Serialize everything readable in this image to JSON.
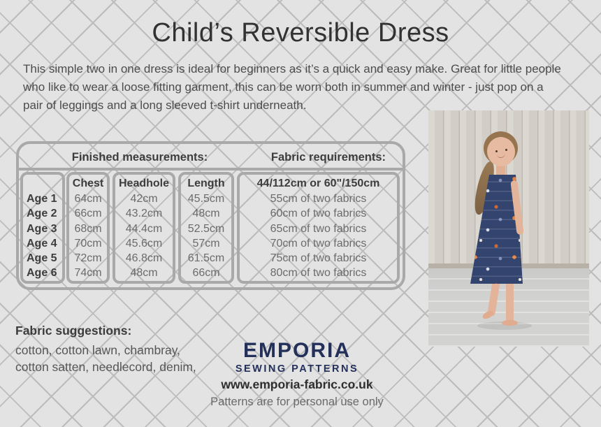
{
  "page": {
    "title": "Child’s Reversible Dress"
  },
  "description": {
    "lines": [
      "This simple two in one dress is ideal for beginners as it’s a quick and easy make. Great for little people",
      "who like to wear a loose fitting garment, this can be worn both in summer and winter - just pop on a",
      "pair of leggings and a long sleeved t-shirt underneath."
    ]
  },
  "table": {
    "finished_header": "Finished measurements:",
    "fabric_header": "Fabric requirements:",
    "columns": [
      "Chest",
      "Headhole",
      "Length",
      "44/112cm or 60\"/150cm"
    ],
    "rows": [
      {
        "age": "Age 1",
        "chest": "64cm",
        "headhole": "42cm",
        "length": "45.5cm",
        "fabric": "55cm of two fabrics"
      },
      {
        "age": "Age 2",
        "chest": "66cm",
        "headhole": "43.2cm",
        "length": "48cm",
        "fabric": "60cm of two fabrics"
      },
      {
        "age": "Age 3",
        "chest": "68cm",
        "headhole": "44.4cm",
        "length": "52.5cm",
        "fabric": "65cm of two fabrics"
      },
      {
        "age": "Age 4",
        "chest": "70cm",
        "headhole": "45.6cm",
        "length": "57cm",
        "fabric": "70cm of two fabrics"
      },
      {
        "age": "Age 5",
        "chest": "72cm",
        "headhole": "46.8cm",
        "length": "61.5cm",
        "fabric": "75cm of two fabrics"
      },
      {
        "age": "Age 6",
        "chest": "74cm",
        "headhole": "48cm",
        "length": "66cm",
        "fabric": "80cm of two fabrics"
      }
    ]
  },
  "fabric_suggestions": {
    "heading": "Fabric suggestions:",
    "lines": [
      "cotton, cotton lawn, chambray,",
      "cotton satten, needlecord, denim,"
    ]
  },
  "brand": {
    "name": "EMPORIA",
    "tagline": "SEWING PATTERNS",
    "website": "www.emporia-fabric.co.uk",
    "license_note": "Patterns are for personal use only"
  },
  "colors": {
    "brand_navy": "#23305a",
    "dress_navy": "#33446f",
    "page_background": "#e3e3e3",
    "pattern_line": "#bcbcbc",
    "table_border": "#a9a9a9"
  }
}
